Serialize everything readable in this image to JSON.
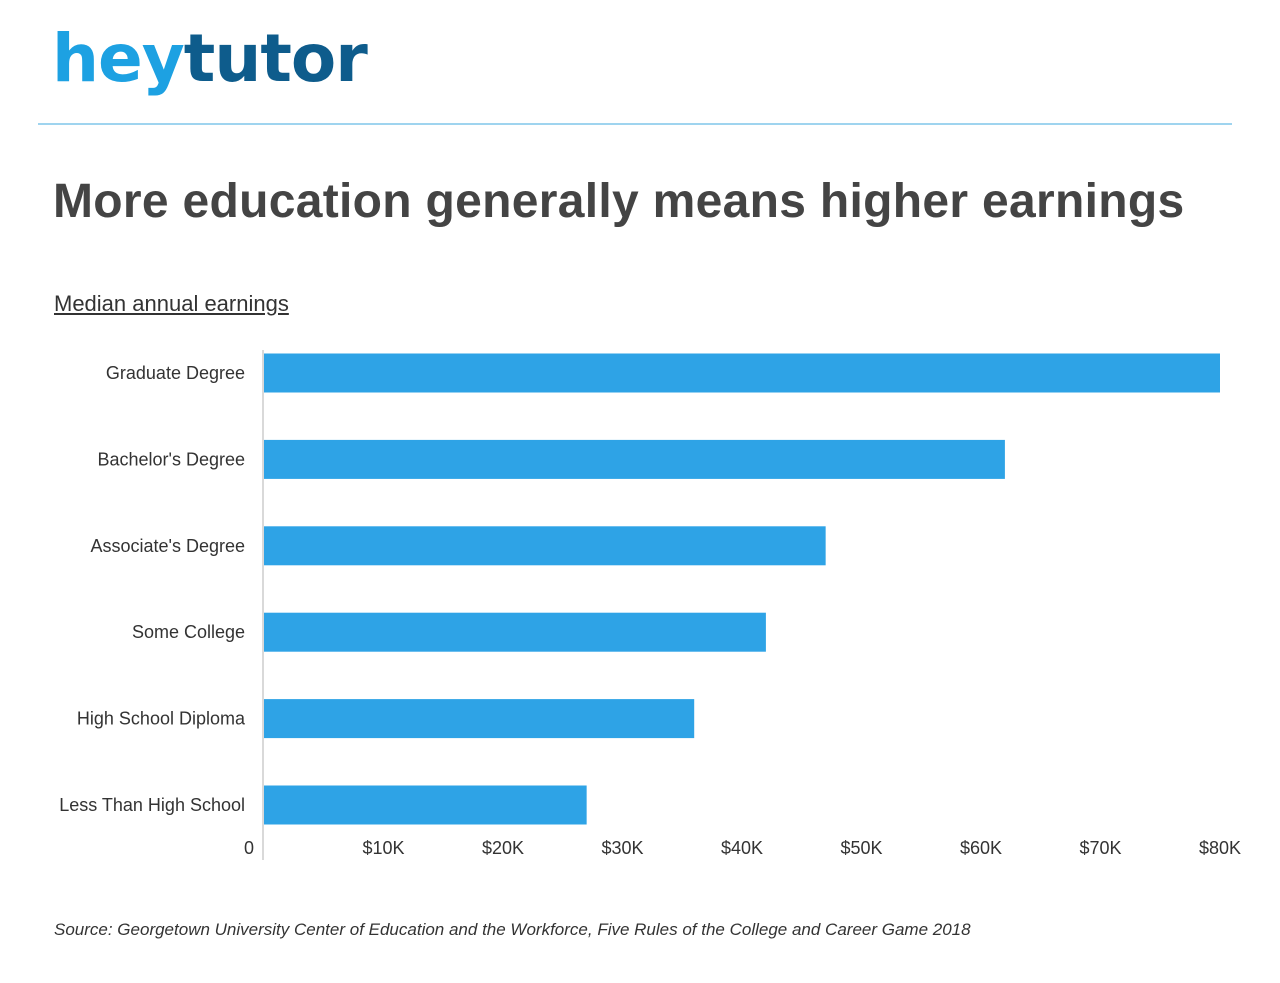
{
  "brand": {
    "part1": "hey",
    "part2": "tutor"
  },
  "title": "More education generally means higher earnings",
  "subtitle": "Median annual earnings",
  "source": "Source: Georgetown University Center of Education and the Workforce, Five Rules of the College and Career Game 2018",
  "colors": {
    "bar": "#2ea3e6",
    "brand_light": "#1da1e2",
    "brand_dark": "#0e5c8c",
    "rule": "#9fd4ef",
    "text": "#333333"
  },
  "chart_data": {
    "type": "bar",
    "orientation": "horizontal",
    "categories": [
      "Graduate Degree",
      "Bachelor's Degree",
      "Associate's Degree",
      "Some College",
      "High School Diploma",
      "Less Than High School"
    ],
    "values": [
      80000,
      62000,
      47000,
      42000,
      36000,
      27000
    ],
    "xlim": [
      0,
      85000
    ],
    "x_ticks": [
      0,
      10000,
      20000,
      30000,
      40000,
      50000,
      60000,
      70000,
      80000
    ],
    "x_tick_labels": [
      "0",
      "$10K",
      "$20K",
      "$30K",
      "$40K",
      "$50K",
      "$60K",
      "$70K",
      "$80K"
    ],
    "grid": false
  }
}
